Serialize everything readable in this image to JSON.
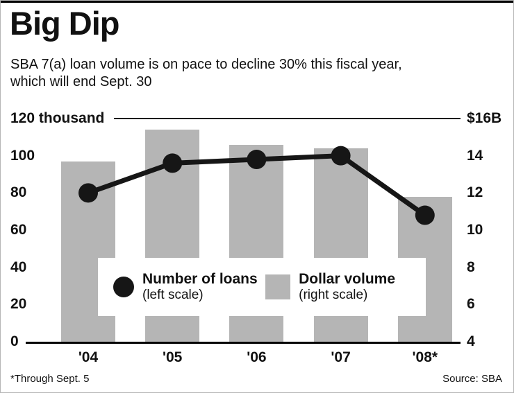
{
  "header": {
    "title": "Big Dip",
    "subtitle_lines": [
      "SBA 7(a) loan volume is on pace to decline 30% this fiscal year,",
      "which will end Sept. 30"
    ]
  },
  "chart_data": {
    "type": "bar",
    "categories": [
      "'04",
      "'05",
      "'06",
      "'07",
      "'08*"
    ],
    "series": [
      {
        "name": "Number of loans",
        "type": "line",
        "axis": "left",
        "units": "thousand",
        "values": [
          80,
          96,
          98,
          100,
          68
        ]
      },
      {
        "name": "Dollar volume",
        "type": "bar",
        "axis": "right",
        "units": "$B",
        "values": [
          13.7,
          15.4,
          14.6,
          14.4,
          11.8
        ]
      }
    ],
    "left_axis": {
      "top_label": "120 thousand",
      "ticks": [
        120,
        100,
        80,
        60,
        40,
        20,
        0
      ],
      "range": [
        0,
        120
      ]
    },
    "right_axis": {
      "top_label": "$16B",
      "ticks": [
        16,
        14,
        12,
        10,
        8,
        6,
        4
      ],
      "range": [
        4,
        16
      ]
    },
    "colors": {
      "bar": "#b5b5b5",
      "line": "#161616"
    },
    "grid": "top and baseline rules only",
    "legend_position": "inside-bottom-center"
  },
  "legend": {
    "loans_label": "Number of loans",
    "loans_sub": "(left scale)",
    "dollar_label": "Dollar volume",
    "dollar_sub": "(right scale)"
  },
  "footer": {
    "note": "*Through Sept. 5",
    "source": "Source: SBA"
  }
}
